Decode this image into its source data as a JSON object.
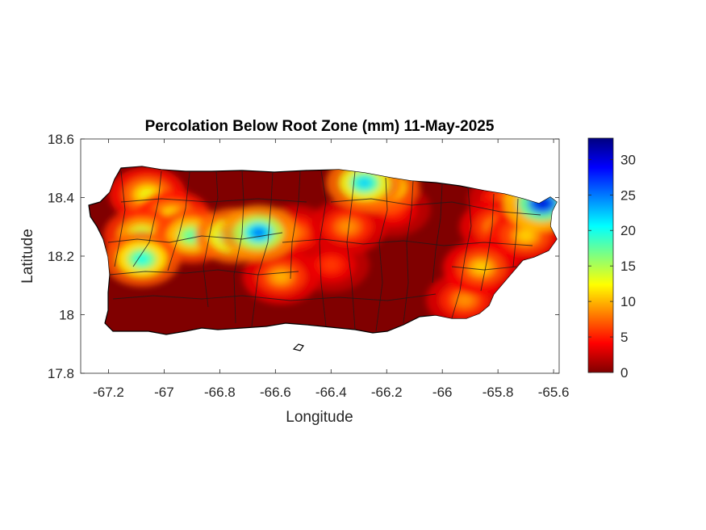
{
  "chart_data": {
    "type": "heatmap",
    "title": "Percolation Below Root Zone (mm) 11-May-2025",
    "xlabel": "Longitude",
    "ylabel": "Latitude",
    "xlim": [
      -67.3,
      -65.58
    ],
    "ylim": [
      17.8,
      18.6
    ],
    "xticks": [
      -67.2,
      -67,
      -66.8,
      -66.6,
      -66.4,
      -66.2,
      -66,
      -65.8,
      -65.6
    ],
    "xtick_labels": [
      "-67.2",
      "-67",
      "-66.8",
      "-66.6",
      "-66.4",
      "-66.2",
      "-66",
      "-65.8",
      "-65.6"
    ],
    "yticks": [
      17.8,
      18,
      18.2,
      18.4,
      18.6
    ],
    "ytick_labels": [
      "17.8",
      "18",
      "18.2",
      "18.4",
      "18.6"
    ],
    "colorbar": {
      "colormap": "jet",
      "range": [
        0,
        33
      ],
      "ticks": [
        0,
        5,
        10,
        15,
        20,
        25,
        30
      ],
      "tick_labels": [
        "0",
        "5",
        "10",
        "15",
        "20",
        "25",
        "30"
      ]
    },
    "background_value": 0,
    "hotspots": [
      {
        "lon": -66.75,
        "lat": 18.27,
        "value": 22
      },
      {
        "lon": -66.66,
        "lat": 18.28,
        "value": 25
      },
      {
        "lon": -66.9,
        "lat": 18.27,
        "value": 18
      },
      {
        "lon": -67.08,
        "lat": 18.27,
        "value": 16
      },
      {
        "lon": -67.08,
        "lat": 18.19,
        "value": 20
      },
      {
        "lon": -66.97,
        "lat": 18.33,
        "value": 14
      },
      {
        "lon": -67.06,
        "lat": 18.41,
        "value": 13
      },
      {
        "lon": -66.28,
        "lat": 18.45,
        "value": 22
      },
      {
        "lon": -66.22,
        "lat": 18.44,
        "value": 20
      },
      {
        "lon": -66.34,
        "lat": 18.3,
        "value": 9
      },
      {
        "lon": -66.53,
        "lat": 18.28,
        "value": 8
      },
      {
        "lon": -66.58,
        "lat": 18.13,
        "value": 10
      },
      {
        "lon": -66.4,
        "lat": 18.17,
        "value": 6
      },
      {
        "lon": -66.18,
        "lat": 18.36,
        "value": 6
      },
      {
        "lon": -65.86,
        "lat": 18.16,
        "value": 11
      },
      {
        "lon": -65.92,
        "lat": 18.05,
        "value": 9
      },
      {
        "lon": -65.8,
        "lat": 18.3,
        "value": 10
      },
      {
        "lon": -65.7,
        "lat": 18.27,
        "value": 11
      },
      {
        "lon": -65.77,
        "lat": 18.39,
        "value": 8
      },
      {
        "lon": -65.64,
        "lat": 18.38,
        "value": 30
      }
    ]
  }
}
